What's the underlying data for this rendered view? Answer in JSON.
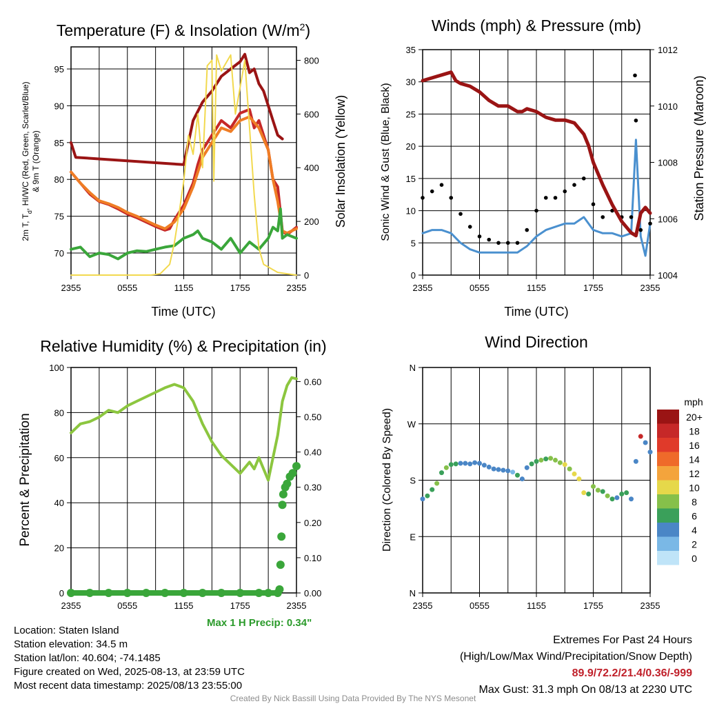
{
  "panels": {
    "temperature": {
      "title": "Temperature (F) & Insolation (W/m",
      "title_sup": "2",
      "title_close": ")",
      "ylabel_left_line1": "2m T, T",
      "ylabel_left_sub": "d",
      "ylabel_left_line1_rest": ", HI/WC (Red, Green, Scarlet/Blue)",
      "ylabel_left_line2": "& 9m T (Orange)",
      "ylabel_right": "Solar Insolation (Yellow)",
      "xlabel": "Time (UTC)"
    },
    "winds": {
      "title": "Winds (mph) & Pressure (mb)",
      "ylabel_left": "Sonic Wind & Gust (Blue, Black)",
      "ylabel_right": "Station Pressure (Maroon)",
      "xlabel": "Time (UTC)"
    },
    "humidity": {
      "title": "Relative Humidity (%) & Precipitation (in)",
      "ylabel_left": "Percent & Precipitation",
      "max_precip_label": "Max 1 H Precip: 0.34\""
    },
    "direction": {
      "title": "Wind Direction",
      "ylabel_left": "Direction (Colored By Speed)",
      "legend_title": "mph"
    }
  },
  "chart_data": [
    {
      "type": "line",
      "title": "Temperature (F) & Insolation (W/m2)",
      "xlabel": "Time (UTC)",
      "x_ticks": [
        "2355",
        "0555",
        "1155",
        "1755",
        "2355"
      ],
      "x_range_hours": [
        0,
        24
      ],
      "ylim": [
        67,
        98
      ],
      "y_ticks": [
        70,
        75,
        80,
        85,
        90,
        95
      ],
      "y2lim": [
        0,
        850
      ],
      "y2_ticks": [
        0,
        200,
        400,
        600,
        800
      ],
      "series": [
        {
          "color": "#c62828",
          "x": [
            0,
            1,
            2,
            3,
            4,
            5,
            6,
            7,
            8,
            9,
            10,
            10.5,
            11,
            12,
            13,
            13.5,
            14,
            15,
            16,
            17,
            18,
            19,
            19.5,
            20,
            21,
            21.5,
            22,
            22.5,
            23,
            24
          ],
          "y": [
            81,
            79.5,
            78,
            77,
            76.6,
            76,
            75.3,
            74.8,
            74.2,
            73.6,
            73.1,
            73.3,
            74.5,
            76.5,
            79.5,
            82,
            84,
            86,
            88,
            87,
            89,
            89.5,
            87,
            88,
            84,
            80,
            79,
            73,
            72.5,
            73.5
          ]
        },
        {
          "color": "#ef7d25",
          "x": [
            0,
            1,
            2,
            3,
            4,
            5,
            6,
            7,
            8,
            9,
            10,
            11,
            12,
            13,
            14,
            15,
            16,
            17,
            18,
            19,
            20,
            21,
            21.5,
            22,
            22.5,
            23,
            24
          ],
          "y": [
            81,
            79.5,
            78.2,
            77.1,
            76.7,
            76.2,
            75.5,
            75,
            74.4,
            73.8,
            73.3,
            74.2,
            76,
            79,
            83,
            85,
            87,
            86.5,
            88,
            88.5,
            87,
            84,
            80,
            77,
            73,
            72.7,
            73.3
          ]
        },
        {
          "color": "#3aa63a",
          "x": [
            0,
            1,
            2,
            3,
            4,
            5,
            6,
            7,
            8,
            9,
            10,
            11,
            12,
            13,
            13.5,
            14,
            15,
            16,
            17,
            18,
            19,
            20,
            21,
            21.5,
            22,
            22.3,
            22.5,
            23,
            24
          ],
          "y": [
            70.5,
            70.8,
            69.5,
            70,
            69.8,
            69.2,
            70,
            70.3,
            70.2,
            70.5,
            70.8,
            71,
            72,
            72.5,
            73,
            72,
            71.5,
            70.5,
            72,
            70,
            71.5,
            70.5,
            72,
            73.5,
            73,
            76,
            72,
            72.5,
            72
          ]
        },
        {
          "color": "#9a1414",
          "x": [
            0,
            0.5,
            12,
            13,
            14,
            15,
            16,
            17,
            18,
            18.5,
            19,
            19.5,
            20,
            20.5,
            21,
            21.5,
            22,
            22.5
          ],
          "y": [
            85,
            83,
            82,
            88,
            90.5,
            92,
            94,
            95,
            96,
            97,
            94.5,
            95,
            93,
            92,
            90,
            88,
            86,
            85.5
          ]
        },
        {
          "color": "#f2d94e",
          "y_axis": "right",
          "x": [
            0,
            8.5,
            9.5,
            10.5,
            11,
            11.5,
            12,
            12.5,
            13,
            13.5,
            14,
            14.5,
            15,
            15.2,
            15.5,
            16,
            16.5,
            17,
            17.5,
            18,
            18.5,
            19,
            19.5,
            20,
            20.5,
            21,
            22,
            23,
            24
          ],
          "y": [
            0,
            0,
            5,
            40,
            120,
            230,
            350,
            520,
            450,
            600,
            400,
            780,
            800,
            350,
            820,
            760,
            790,
            820,
            600,
            700,
            800,
            550,
            300,
            100,
            40,
            30,
            10,
            5,
            0
          ]
        }
      ]
    },
    {
      "type": "line",
      "title": "Winds (mph) & Pressure (mb)",
      "xlabel": "Time (UTC)",
      "x_ticks": [
        "2355",
        "0555",
        "1155",
        "1755",
        "2355"
      ],
      "x_range_hours": [
        0,
        24
      ],
      "ylim": [
        0,
        35
      ],
      "y_ticks": [
        0,
        5,
        10,
        15,
        20,
        25,
        30,
        35
      ],
      "y2lim": [
        1004,
        1012
      ],
      "y2_ticks": [
        1004,
        1006,
        1008,
        1010,
        1012
      ],
      "series": [
        {
          "color": "#4a90cf",
          "x": [
            0,
            1,
            2,
            3,
            4,
            5,
            6,
            7,
            8,
            9,
            10,
            11,
            12,
            13,
            14,
            15,
            16,
            17,
            18,
            19,
            20,
            21,
            22,
            22.5,
            23,
            23.5,
            24
          ],
          "y": [
            6.5,
            7,
            7,
            6.5,
            5,
            4,
            3.5,
            3.5,
            3.5,
            3.5,
            3.5,
            4.5,
            6,
            7,
            7.5,
            8,
            8,
            9,
            7,
            6.5,
            6.5,
            6,
            6.5,
            21,
            6,
            3,
            8
          ]
        },
        {
          "color": "#000000",
          "type": "scatter",
          "x": [
            0,
            1,
            2,
            3,
            4,
            5,
            6,
            7,
            8,
            9,
            10,
            11,
            12,
            13,
            14,
            15,
            16,
            17,
            18,
            19,
            20,
            21,
            22,
            22.4,
            22.5,
            23,
            24
          ],
          "y": [
            12,
            13,
            14,
            12,
            9.5,
            7.5,
            6,
            5.5,
            5,
            5,
            5,
            7,
            10,
            12,
            12,
            13,
            14,
            15,
            11,
            9,
            10,
            9,
            9,
            31,
            24,
            7,
            8
          ]
        },
        {
          "color": "#9a1414",
          "y_axis": "right",
          "x": [
            0,
            1,
            2,
            3,
            3.5,
            4,
            5,
            6,
            7,
            8,
            9,
            10,
            10.5,
            11,
            12,
            13,
            14,
            15,
            16,
            17,
            17.5,
            18,
            19,
            20,
            21,
            22,
            22.5,
            23,
            23.5,
            24
          ],
          "y": [
            1010.9,
            1011,
            1011.1,
            1011.2,
            1010.9,
            1010.8,
            1010.7,
            1010.5,
            1010.2,
            1010,
            1010,
            1009.8,
            1009.8,
            1009.9,
            1009.8,
            1009.6,
            1009.5,
            1009.5,
            1009.4,
            1009,
            1008.6,
            1008,
            1007.2,
            1006.5,
            1005.9,
            1005.5,
            1005.4,
            1006.2,
            1006.4,
            1006.2
          ]
        }
      ]
    },
    {
      "type": "line",
      "title": "Relative Humidity (%) & Precipitation (in)",
      "x_ticks": [
        "2355",
        "0555",
        "1155",
        "1755",
        "2355"
      ],
      "x_range_hours": [
        0,
        24
      ],
      "ylim": [
        0,
        100
      ],
      "y_ticks": [
        0,
        20,
        40,
        60,
        80,
        100
      ],
      "y2lim": [
        0,
        0.64
      ],
      "y2_ticks": [
        0.0,
        0.1,
        0.2,
        0.3,
        0.4,
        0.5,
        0.6
      ],
      "series": [
        {
          "color": "#8cc63f",
          "x": [
            0,
            1,
            2,
            3,
            4,
            5,
            6,
            7,
            8,
            9,
            10,
            11,
            12,
            13,
            14,
            15,
            16,
            17,
            18,
            19,
            19.5,
            20,
            21,
            22,
            22.5,
            23,
            23.5,
            24
          ],
          "y": [
            71,
            75,
            76,
            78,
            81,
            80,
            83,
            85,
            87,
            89,
            91,
            92.5,
            91,
            85,
            75,
            67,
            61,
            57,
            53,
            58,
            55,
            60,
            50,
            70,
            85,
            92,
            95.5,
            95
          ]
        },
        {
          "color": "#3aa63a",
          "type": "scatter",
          "y_axis": "right",
          "x": [
            0,
            2,
            4,
            6,
            8,
            10,
            12,
            14,
            16,
            18,
            20,
            21,
            22,
            22.2,
            22.3,
            22.4,
            22.5,
            22.6,
            22.8,
            23,
            23.3,
            23.6,
            24
          ],
          "y": [
            0,
            0,
            0,
            0,
            0,
            0,
            0,
            0,
            0,
            0,
            0,
            0,
            0,
            0.01,
            0.08,
            0.16,
            0.25,
            0.28,
            0.3,
            0.31,
            0.33,
            0.34,
            0.36
          ]
        }
      ]
    },
    {
      "type": "scatter",
      "title": "Wind Direction",
      "x_ticks": [
        "2355",
        "0555",
        "1155",
        "1755",
        "2355"
      ],
      "x_range_hours": [
        0,
        24
      ],
      "y_categories": [
        "N",
        "E",
        "S",
        "W",
        "N"
      ],
      "ylim": [
        0,
        360
      ],
      "legend_title": "mph",
      "legend_labels": [
        "20+",
        "18",
        "16",
        "14",
        "12",
        "10",
        "8",
        "6",
        "4",
        "2",
        "0"
      ],
      "legend_colors": [
        "#9a1414",
        "#c62828",
        "#e03a2a",
        "#ef6a2a",
        "#f4a43c",
        "#e6d84a",
        "#86c04a",
        "#3aa05a",
        "#4a86c6",
        "#7ab8e6",
        "#bfe4f8"
      ],
      "points_x": [
        0,
        0.5,
        1,
        1.5,
        2,
        2.5,
        3,
        3.5,
        4,
        4.5,
        5,
        5.5,
        6,
        6.5,
        7,
        7.5,
        8,
        8.5,
        9,
        9.5,
        10,
        10.5,
        11,
        11.5,
        12,
        12.5,
        13,
        13.5,
        14,
        14.5,
        15,
        15.5,
        16,
        16.5,
        17,
        17.5,
        18,
        18.5,
        19,
        19.5,
        20,
        20.5,
        21,
        21.5,
        22,
        22.5,
        23,
        23.5,
        24
      ],
      "points_dir": [
        150,
        155,
        165,
        175,
        192,
        200,
        205,
        206,
        207,
        207,
        206,
        208,
        207,
        204,
        201,
        198,
        197,
        196,
        195,
        193,
        188,
        182,
        200,
        206,
        210,
        212,
        214,
        215,
        212,
        208,
        205,
        198,
        190,
        182,
        160,
        158,
        170,
        164,
        162,
        155,
        150,
        152,
        158,
        160,
        150,
        210,
        250,
        240,
        225
      ],
      "points_speed": [
        4,
        6,
        6,
        7,
        6,
        7,
        5,
        5,
        4,
        4,
        4,
        4,
        3,
        3,
        3,
        3,
        3,
        4,
        4,
        2,
        5,
        4,
        4,
        5,
        5,
        7,
        6,
        7,
        7,
        8,
        9,
        8,
        9,
        10,
        9,
        6,
        7,
        8,
        6,
        8,
        5,
        4,
        6,
        6,
        4,
        4,
        18,
        4,
        4
      ]
    }
  ],
  "info": {
    "location": "Location: Staten Island",
    "elevation": "Station elevation: 34.5 m",
    "latlon": "Station lat/lon: 40.604; -74.1485",
    "created": "Figure created on Wed, 2025-08-13, at 23:59 UTC",
    "recent": "Most recent data timestamp: 2025/08/13 23:55:00",
    "extremes_title": "Extremes For Past 24 Hours",
    "extremes_legend": "(High/Low/Max Wind/Precipitation/Snow Depth)",
    "extremes_values": "89.9/72.2/21.4/0.36/-999",
    "max_gust": "Max Gust: 31.3 mph On 08/13 at 2230 UTC",
    "credit": "Created By Nick Bassill Using Data Provided By The NYS Mesonet"
  }
}
